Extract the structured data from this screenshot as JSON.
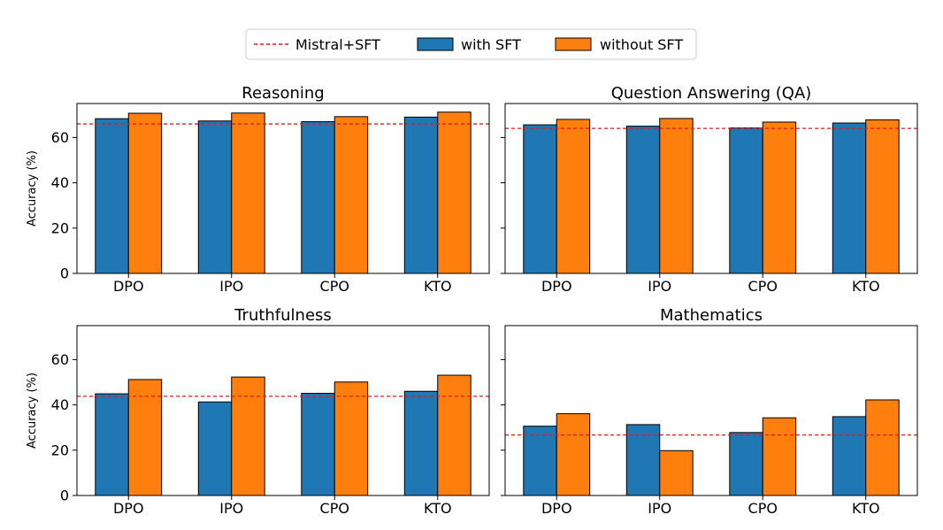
{
  "legend": {
    "reference": "Mistral+SFT",
    "with": "with SFT",
    "without": "without SFT"
  },
  "colors": {
    "with": "#1f77b4",
    "without": "#ff7f0e",
    "reference": "#e41a1c"
  },
  "chart_data": [
    {
      "type": "bar",
      "title": "Reasoning",
      "categories": [
        "DPO",
        "IPO",
        "CPO",
        "KTO"
      ],
      "series": [
        {
          "name": "with SFT",
          "values": [
            68.3,
            67.3,
            67.0,
            69.0
          ]
        },
        {
          "name": "without SFT",
          "values": [
            70.7,
            70.8,
            69.2,
            71.2
          ]
        }
      ],
      "reference": 66.0,
      "ylabel": "Accuracy (%)",
      "ylim": [
        0,
        75
      ],
      "yticks": [
        0,
        20,
        40,
        60
      ]
    },
    {
      "type": "bar",
      "title": "Question Answering (QA)",
      "categories": [
        "DPO",
        "IPO",
        "CPO",
        "KTO"
      ],
      "series": [
        {
          "name": "with SFT",
          "values": [
            65.6,
            65.0,
            64.2,
            66.4
          ]
        },
        {
          "name": "without SFT",
          "values": [
            68.0,
            68.4,
            66.8,
            67.8
          ]
        }
      ],
      "reference": 64.0,
      "ylabel": "",
      "ylim": [
        0,
        75
      ],
      "yticks": [
        0,
        20,
        40,
        60
      ]
    },
    {
      "type": "bar",
      "title": "Truthfulness",
      "categories": [
        "DPO",
        "IPO",
        "CPO",
        "KTO"
      ],
      "series": [
        {
          "name": "with SFT",
          "values": [
            44.9,
            41.3,
            45.1,
            46.0
          ]
        },
        {
          "name": "without SFT",
          "values": [
            51.2,
            52.3,
            50.1,
            53.1
          ]
        }
      ],
      "reference": 43.8,
      "ylabel": "Accuracy (%)",
      "ylim": [
        0,
        75
      ],
      "yticks": [
        0,
        20,
        40,
        60
      ]
    },
    {
      "type": "bar",
      "title": "Mathematics",
      "categories": [
        "DPO",
        "IPO",
        "CPO",
        "KTO"
      ],
      "series": [
        {
          "name": "with SFT",
          "values": [
            30.6,
            31.3,
            27.8,
            34.8
          ]
        },
        {
          "name": "without SFT",
          "values": [
            36.1,
            19.8,
            34.3,
            42.2
          ]
        }
      ],
      "reference": 26.7,
      "ylabel": "",
      "ylim": [
        0,
        75
      ],
      "yticks": [
        0,
        20,
        40,
        60
      ]
    }
  ]
}
